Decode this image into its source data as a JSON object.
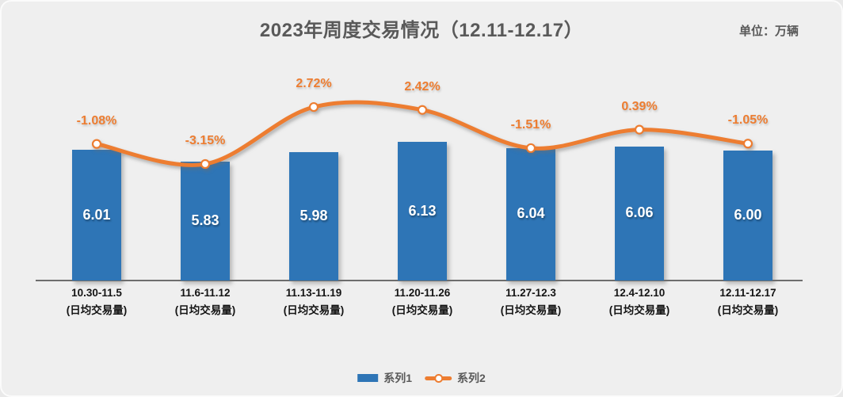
{
  "header": {
    "title": "2023年周度交易情况（12.11-12.17）",
    "unit_label": "单位：万辆"
  },
  "legend": {
    "position": "bottom",
    "items": [
      {
        "label": "系列1",
        "type": "bar",
        "color": "#2e75b6"
      },
      {
        "label": "系列2",
        "type": "line",
        "color": "#ed7d31"
      }
    ]
  },
  "chart_data": {
    "type": "bar+line",
    "title": "2023年周度交易情况（12.11-12.17）",
    "unit": "万辆",
    "categories": [
      "10.30-11.5",
      "11.6-11.12",
      "11.13-11.19",
      "11.20-11.26",
      "11.27-12.3",
      "12.4-12.10",
      "12.11-12.17"
    ],
    "category_subtitle": "(日均交易量)",
    "series": [
      {
        "name": "系列1",
        "type": "bar",
        "axis": "primary",
        "color": "#2e75b6",
        "values": [
          6.01,
          5.83,
          5.98,
          6.13,
          6.04,
          6.06,
          6.0
        ],
        "data_labels": [
          "6.01",
          "5.83",
          "5.98",
          "6.13",
          "6.04",
          "6.06",
          "6.00"
        ]
      },
      {
        "name": "系列2",
        "type": "line",
        "axis": "secondary",
        "color": "#ed7d31",
        "marker": "circle-white-fill",
        "values": [
          -1.08,
          -3.15,
          2.72,
          2.42,
          -1.51,
          0.39,
          -1.05
        ],
        "data_labels": [
          "-1.08%",
          "-3.15%",
          "2.72%",
          "2.42%",
          "-1.51%",
          "0.39%",
          "-1.05%"
        ]
      }
    ],
    "axes": {
      "x_visible": true,
      "y_primary": {
        "visible": false,
        "est_min": 4.0,
        "est_max": 7.6
      },
      "y_secondary": {
        "visible": false,
        "unit": "%",
        "est_min": -8,
        "est_max": 4
      },
      "gridlines": false
    },
    "legend_position": "bottom"
  }
}
